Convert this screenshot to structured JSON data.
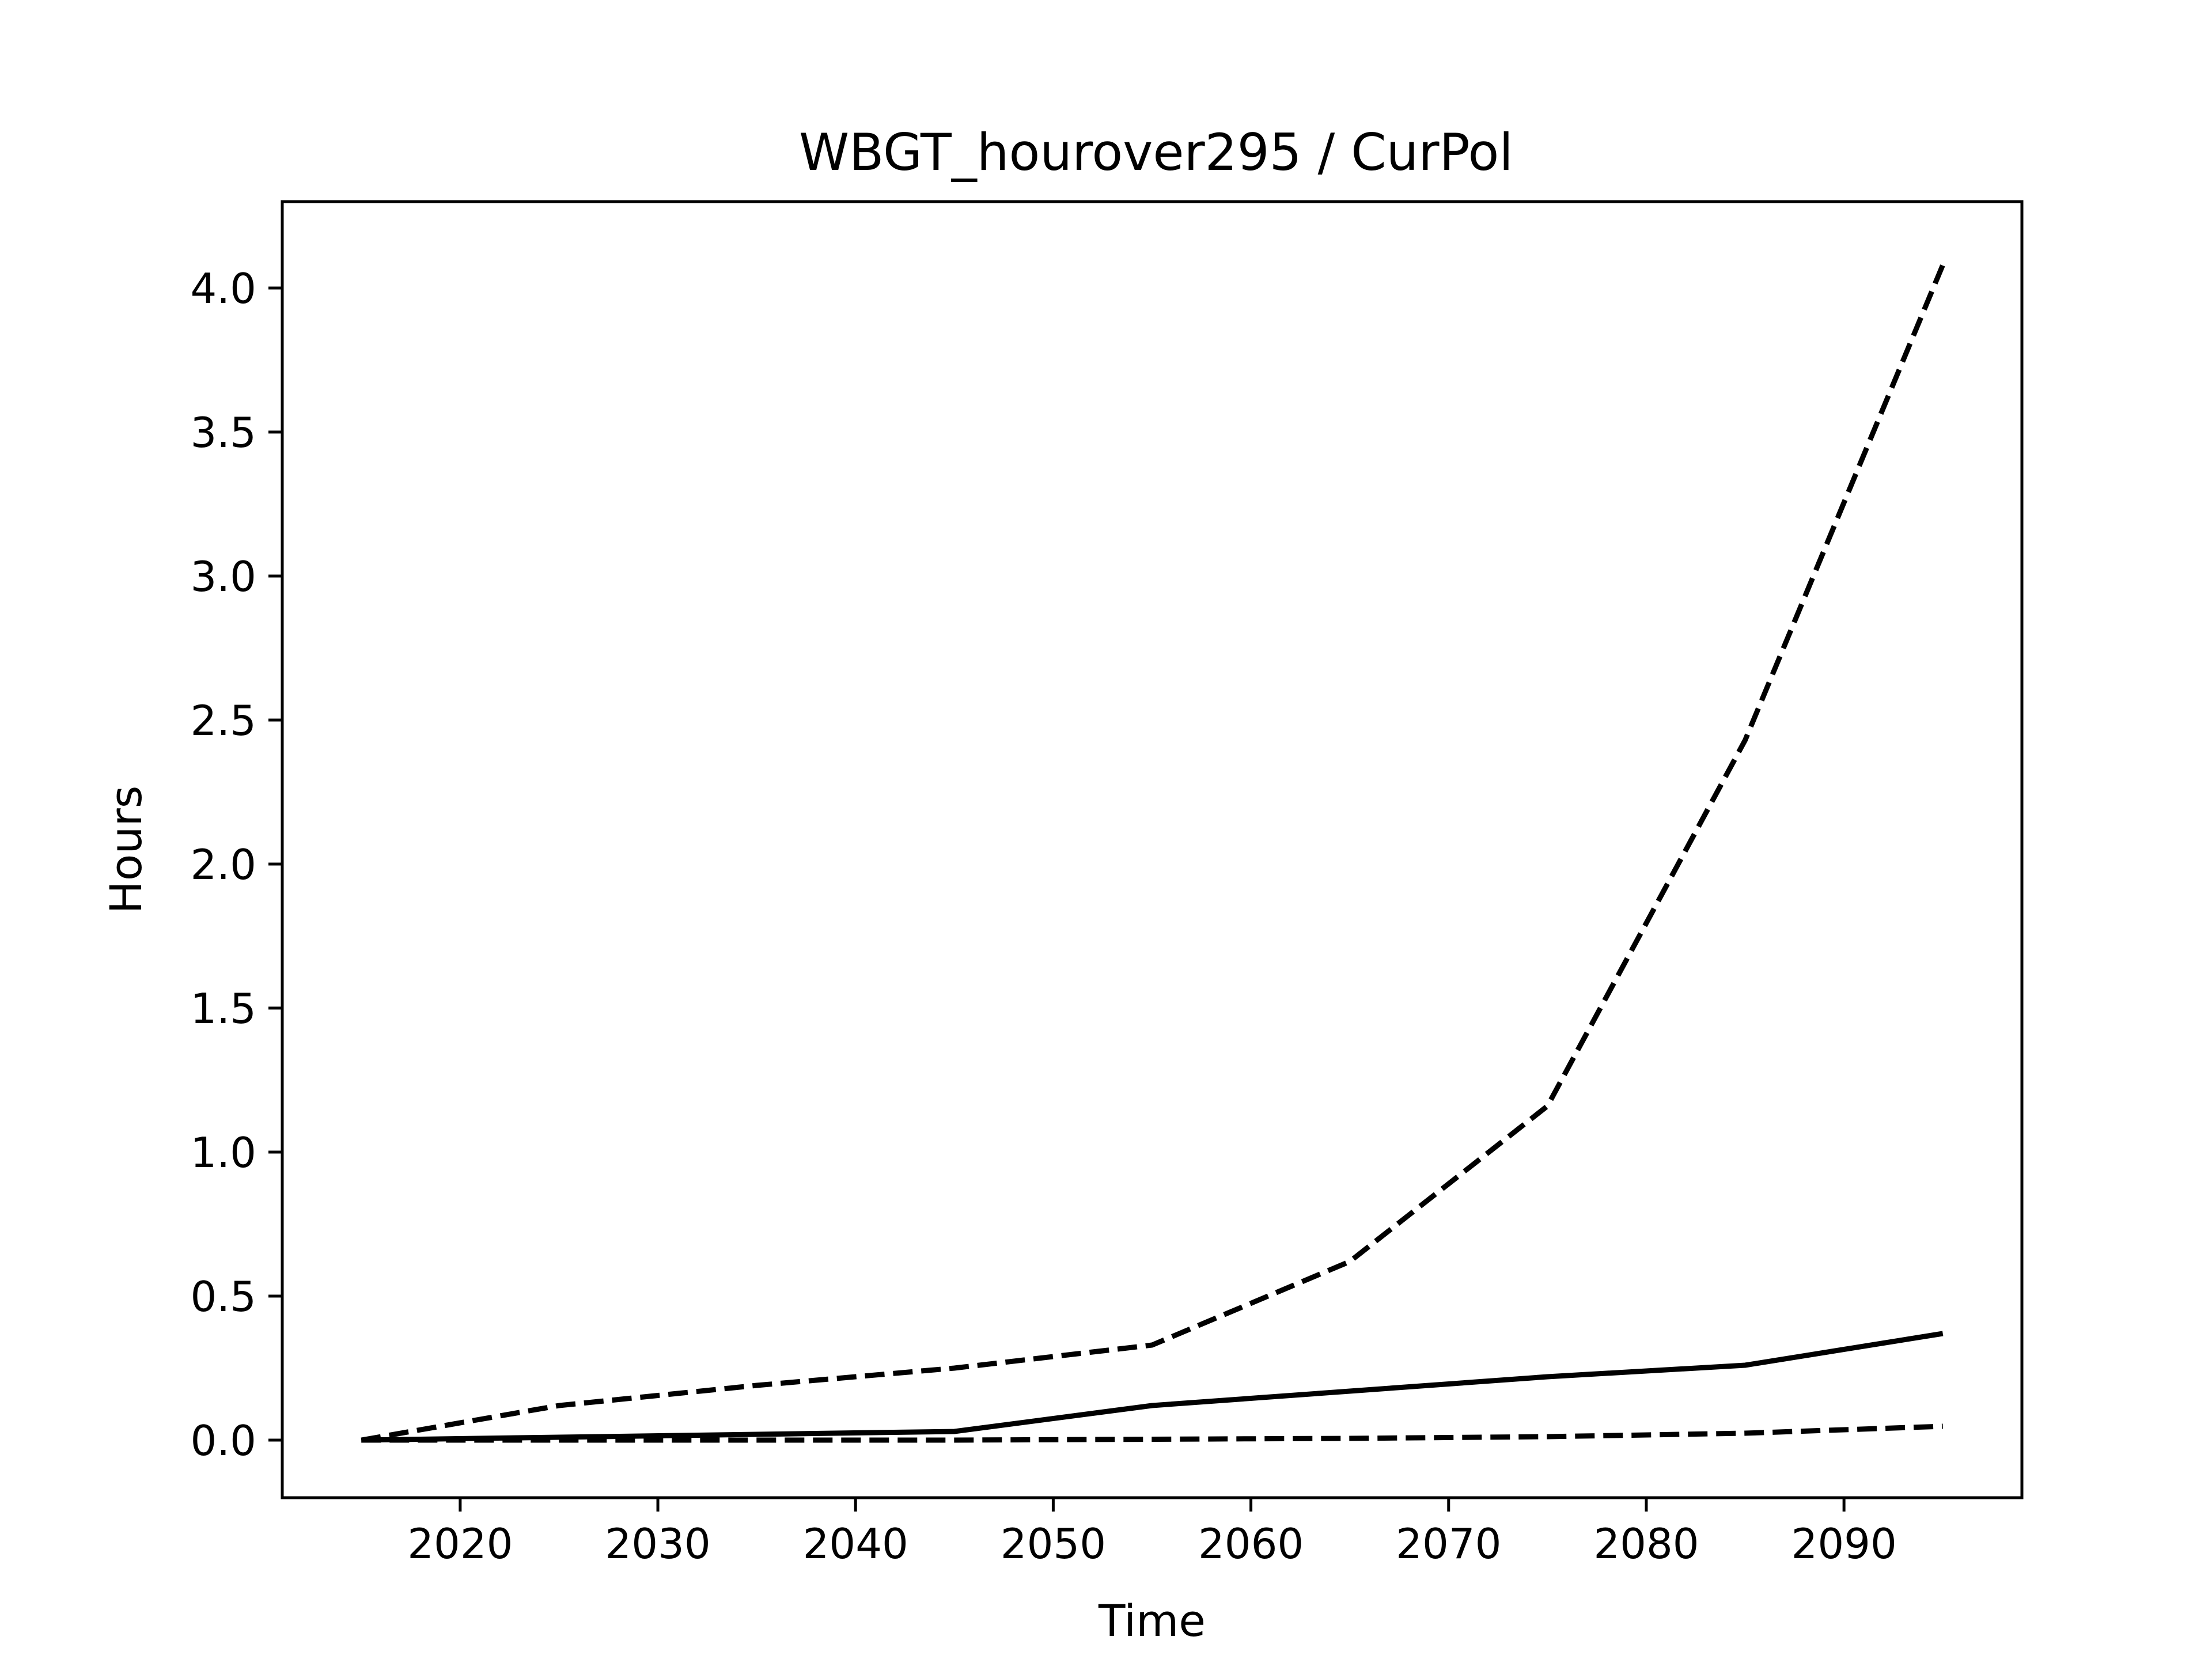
{
  "chart_data": {
    "type": "line",
    "title": "WBGT_hourover295 / CurPol",
    "xlabel": "Time",
    "ylabel": "Hours",
    "xlim": [
      2011,
      2099
    ],
    "ylim": [
      -0.2,
      4.3
    ],
    "xticks": [
      2020,
      2030,
      2040,
      2050,
      2060,
      2070,
      2080,
      2090
    ],
    "yticks": [
      0.0,
      0.5,
      1.0,
      1.5,
      2.0,
      2.5,
      3.0,
      3.5,
      4.0
    ],
    "ytick_labels": [
      "0.0",
      "0.5",
      "1.0",
      "1.5",
      "2.0",
      "2.5",
      "3.0",
      "3.5",
      "4.0"
    ],
    "grid": false,
    "legend": "none",
    "x": [
      2015,
      2025,
      2035,
      2045,
      2055,
      2065,
      2075,
      2085,
      2095
    ],
    "series": [
      {
        "style": "dashed",
        "color": "#000000",
        "values": [
          0.0,
          0.12,
          0.19,
          0.25,
          0.33,
          0.62,
          1.16,
          2.43,
          4.08
        ]
      },
      {
        "style": "solid",
        "color": "#000000",
        "values": [
          0.0,
          0.01,
          0.02,
          0.03,
          0.12,
          0.17,
          0.22,
          0.26,
          0.37
        ]
      },
      {
        "style": "dashed",
        "color": "#000000",
        "values": [
          0.0,
          0.0,
          0.0,
          0.0,
          0.003,
          0.006,
          0.012,
          0.024,
          0.048
        ]
      }
    ]
  }
}
